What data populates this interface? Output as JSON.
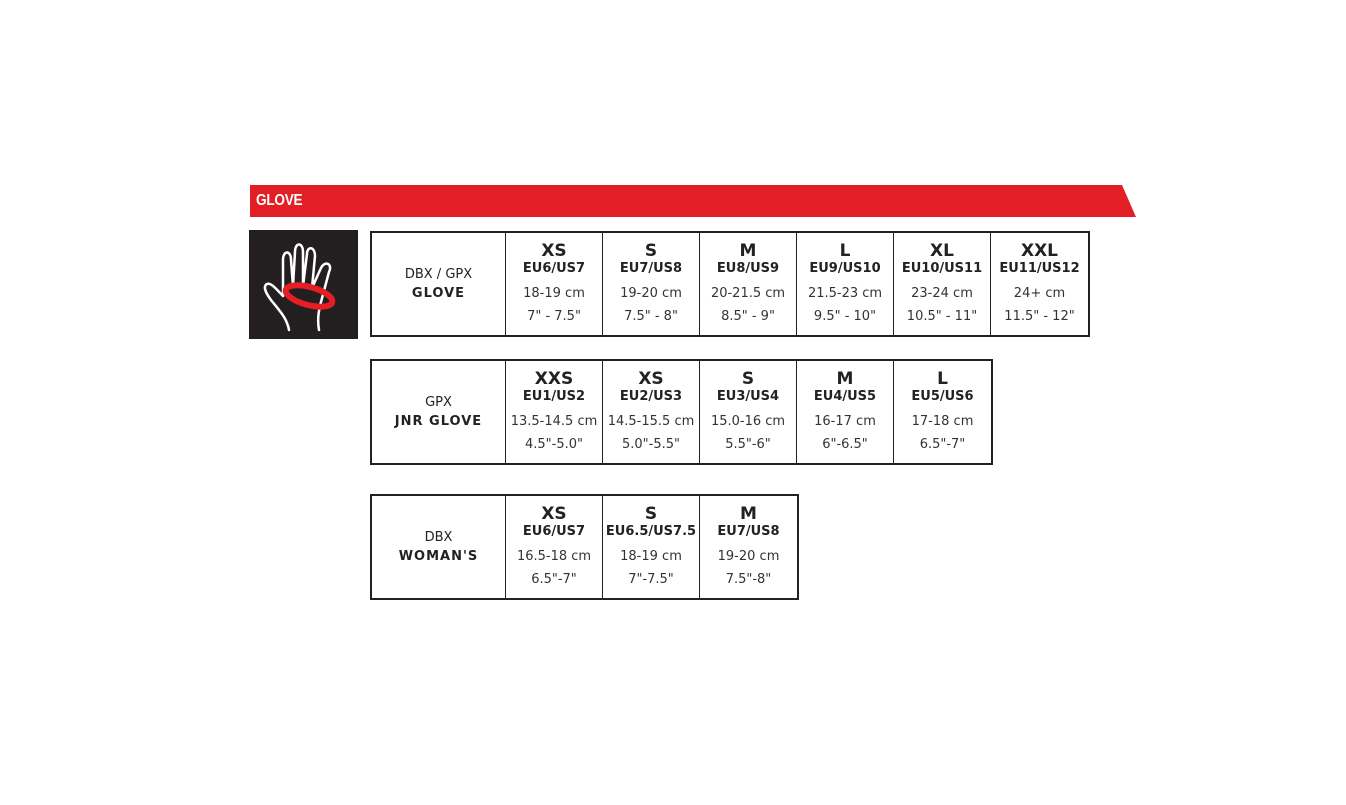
{
  "banner": {
    "title": "GLOVE",
    "color": "#e31e24"
  },
  "icon": {
    "name": "hand-measure-icon"
  },
  "tables": [
    {
      "line1": "DBX / GPX",
      "line2": "GLOVE",
      "sizes": [
        {
          "size": "XS",
          "eu_us": "EU6/US7",
          "cm": "18-19 cm",
          "inch": "7\" - 7.5\""
        },
        {
          "size": "S",
          "eu_us": "EU7/US8",
          "cm": "19-20 cm",
          "inch": "7.5\" - 8\""
        },
        {
          "size": "M",
          "eu_us": "EU8/US9",
          "cm": "20-21.5 cm",
          "inch": "8.5\" - 9\""
        },
        {
          "size": "L",
          "eu_us": "EU9/US10",
          "cm": "21.5-23 cm",
          "inch": "9.5\" - 10\""
        },
        {
          "size": "XL",
          "eu_us": "EU10/US11",
          "cm": "23-24 cm",
          "inch": "10.5\" - 11\""
        },
        {
          "size": "XXL",
          "eu_us": "EU11/US12",
          "cm": "24+ cm",
          "inch": "11.5\" - 12\""
        }
      ]
    },
    {
      "line1": "GPX",
      "line2": "JNR GLOVE",
      "sizes": [
        {
          "size": "XXS",
          "eu_us": "EU1/US2",
          "cm": "13.5-14.5 cm",
          "inch": "4.5\"-5.0\""
        },
        {
          "size": "XS",
          "eu_us": "EU2/US3",
          "cm": "14.5-15.5 cm",
          "inch": "5.0\"-5.5\""
        },
        {
          "size": "S",
          "eu_us": "EU3/US4",
          "cm": "15.0-16 cm",
          "inch": "5.5\"-6\""
        },
        {
          "size": "M",
          "eu_us": "EU4/US5",
          "cm": "16-17 cm",
          "inch": "6\"-6.5\""
        },
        {
          "size": "L",
          "eu_us": "EU5/US6",
          "cm": "17-18 cm",
          "inch": "6.5\"-7\""
        }
      ]
    },
    {
      "line1": "DBX",
      "line2": "WOMAN'S",
      "sizes": [
        {
          "size": "XS",
          "eu_us": "EU6/US7",
          "cm": "16.5-18 cm",
          "inch": "6.5\"-7\""
        },
        {
          "size": "S",
          "eu_us": "EU6.5/US7.5",
          "cm": "18-19 cm",
          "inch": "7\"-7.5\""
        },
        {
          "size": "M",
          "eu_us": "EU7/US8",
          "cm": "19-20 cm",
          "inch": "7.5\"-8\""
        }
      ]
    }
  ]
}
